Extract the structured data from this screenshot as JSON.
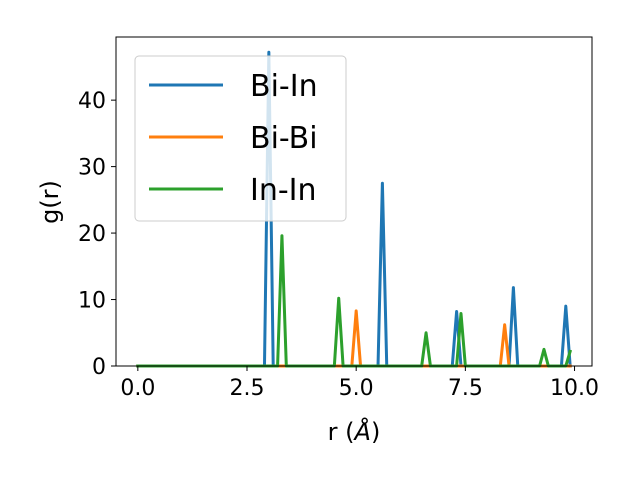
{
  "chart_data": {
    "type": "line",
    "xlabel": "r (",
    "xlabel_symbol": "Å",
    "xlabel_close": ")",
    "ylabel": "g(r)",
    "xlim": [
      -0.5,
      10.4
    ],
    "ylim": [
      0,
      49.5
    ],
    "xticks": [
      0.0,
      2.5,
      5.0,
      7.5,
      10.0
    ],
    "xtick_labels": [
      "0.0",
      "2.5",
      "5.0",
      "7.5",
      "10.0"
    ],
    "yticks": [
      0,
      10,
      20,
      30,
      40
    ],
    "ytick_labels": [
      "0",
      "10",
      "20",
      "30",
      "40"
    ],
    "grid": false,
    "legend_position": "top-left",
    "series": [
      {
        "name": "Bi-In",
        "color": "#1f77b4",
        "x": [
          0.0,
          2.9,
          3.0,
          3.1,
          5.5,
          5.6,
          5.7,
          7.2,
          7.3,
          7.4,
          8.5,
          8.6,
          8.7,
          9.7,
          9.8,
          9.9
        ],
        "y": [
          0,
          0,
          47.2,
          0,
          0,
          27.5,
          0,
          0,
          8.2,
          0,
          0,
          11.8,
          0,
          0,
          9.0,
          0
        ]
      },
      {
        "name": "Bi-Bi",
        "color": "#ff7f0e",
        "x": [
          0.0,
          4.9,
          5.0,
          5.1,
          8.3,
          8.4,
          8.5,
          9.9
        ],
        "y": [
          0,
          0,
          8.3,
          0,
          0,
          6.2,
          0,
          0
        ]
      },
      {
        "name": "In-In",
        "color": "#2ca02c",
        "x": [
          0.0,
          3.2,
          3.3,
          3.4,
          4.5,
          4.6,
          4.7,
          6.5,
          6.6,
          6.7,
          7.3,
          7.4,
          7.5,
          9.2,
          9.3,
          9.4,
          9.8,
          9.9
        ],
        "y": [
          0,
          0,
          19.6,
          0,
          0,
          10.2,
          0,
          0,
          5.0,
          0,
          0,
          7.9,
          0,
          0,
          2.5,
          0,
          0,
          2.2
        ]
      }
    ]
  }
}
